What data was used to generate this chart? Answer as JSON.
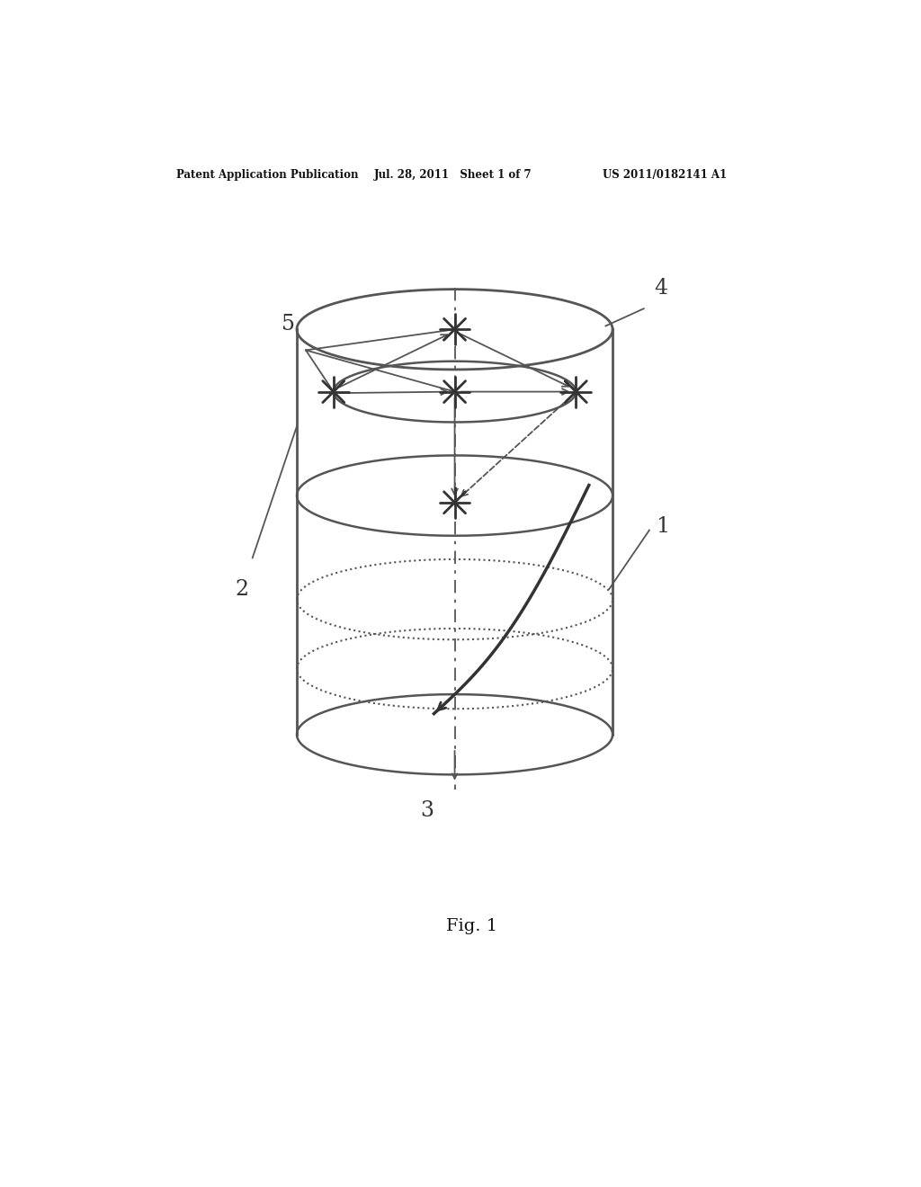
{
  "header_left": "Patent Application Publication",
  "header_mid": "Jul. 28, 2011   Sheet 1 of 7",
  "header_right": "US 2011/0182141 A1",
  "fig_label": "Fig. 1",
  "label_1": "1",
  "label_2": "2",
  "label_3": "3",
  "label_4": "4",
  "label_5": "5",
  "bg_color": "#ffffff",
  "line_color": "#555555",
  "dark_color": "#333333"
}
